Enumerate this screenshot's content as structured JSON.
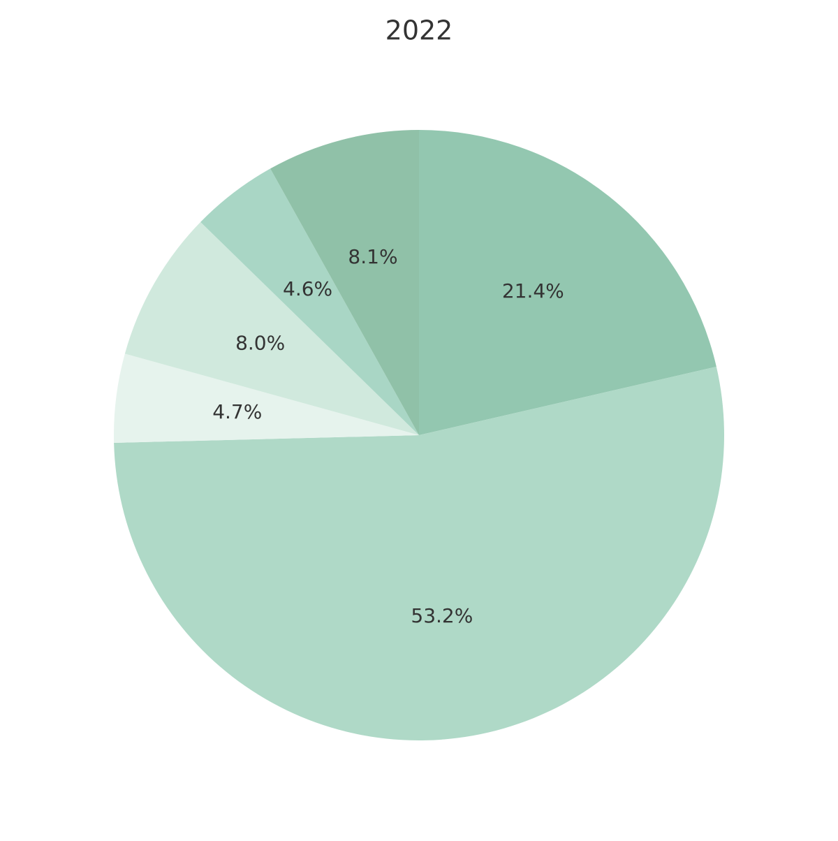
{
  "chart_data": {
    "type": "pie",
    "title": "2022",
    "values": [
      21.4,
      53.2,
      4.7,
      8.0,
      4.6,
      8.1
    ],
    "value_labels": [
      "21.4%",
      "53.2%",
      "4.7%",
      "8.0%",
      "4.6%",
      "8.1%"
    ],
    "colors": [
      "#93c7b0",
      "#afd9c7",
      "#e6f3ed",
      "#d0e9dd",
      "#a9d6c5",
      "#90c1a8"
    ]
  }
}
